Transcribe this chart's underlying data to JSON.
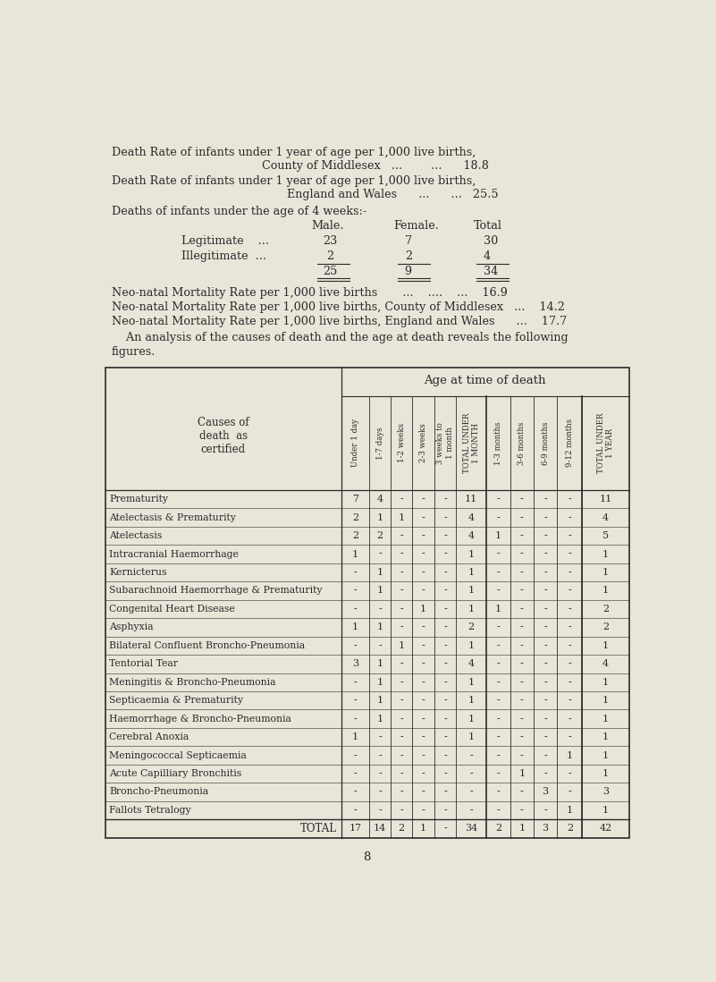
{
  "bg_color": "#e9e5d9",
  "text_color": "#2a2a2a",
  "page_number": "8",
  "table": {
    "causes": [
      "Prematurity",
      "Atelectasis & Prematurity",
      "Atelectasis",
      "Intracranial Haemorrhage",
      "Kernicterus",
      "Subarachnoid Haemorrhage & Prematurity",
      "Congenital Heart Disease",
      "Asphyxia",
      "Bilateral Confluent Broncho-Pneumonia",
      "Tentorial Tear",
      "Meningitis & Broncho-Pneumonia",
      "Septicaemia & Prematurity",
      "Haemorrhage & Broncho-Pneumonia",
      "Cerebral Anoxia",
      "Meningococcal Septicaemia",
      "Acute Capilliary Bronchitis",
      "Broncho-Pneumonia",
      "Fallots Tetralogy",
      "TOTAL"
    ],
    "col_headers": [
      "Under 1 day",
      "1-7 days",
      "1-2 weeks",
      "2-3 weeks",
      "3 weeks to\n1 month",
      "TOTAL UNDER\n1 MONTH",
      "1-3 months",
      "3-6 months",
      "6-9 months",
      "9-12 months",
      "TOTAL UNDER\n1 YEAR"
    ],
    "data": [
      [
        "7",
        "4",
        "-",
        "-",
        "-",
        "11",
        "-",
        "-",
        "-",
        "-",
        "11"
      ],
      [
        "2",
        "1",
        "1",
        "-",
        "-",
        "4",
        "-",
        "-",
        "-",
        "-",
        "4"
      ],
      [
        "2",
        "2",
        "-",
        "-",
        "-",
        "4",
        "1",
        "-",
        "-",
        "-",
        "5"
      ],
      [
        "1",
        "-",
        "-",
        "-",
        "-",
        "1",
        "-",
        "-",
        "-",
        "-",
        "1"
      ],
      [
        "-",
        "1",
        "-",
        "-",
        "-",
        "1",
        "-",
        "-",
        "-",
        "-",
        "1"
      ],
      [
        "-",
        "1",
        "-",
        "-",
        "-",
        "1",
        "-",
        "-",
        "-",
        "-",
        "1"
      ],
      [
        "-",
        "-",
        "-",
        "1",
        "-",
        "1",
        "1",
        "-",
        "-",
        "-",
        "2"
      ],
      [
        "1",
        "1",
        "-",
        "-",
        "-",
        "2",
        "-",
        "-",
        "-",
        "-",
        "2"
      ],
      [
        "-",
        "-",
        "1",
        "-",
        "-",
        "1",
        "-",
        "-",
        "-",
        "-",
        "1"
      ],
      [
        "3",
        "1",
        "-",
        "-",
        "-",
        "4",
        "-",
        "-",
        "-",
        "-",
        "4"
      ],
      [
        "-",
        "1",
        "-",
        "-",
        "-",
        "1",
        "-",
        "-",
        "-",
        "-",
        "1"
      ],
      [
        "-",
        "1",
        "-",
        "-",
        "-",
        "1",
        "-",
        "-",
        "-",
        "-",
        "1"
      ],
      [
        "-",
        "1",
        "-",
        "-",
        "-",
        "1",
        "-",
        "-",
        "-",
        "-",
        "1"
      ],
      [
        "1",
        "-",
        "-",
        "-",
        "-",
        "1",
        "-",
        "-",
        "-",
        "-",
        "1"
      ],
      [
        "-",
        "-",
        "-",
        "-",
        "-",
        "-",
        "-",
        "-",
        "-",
        "1",
        "1"
      ],
      [
        "-",
        "-",
        "-",
        "-",
        "-",
        "-",
        "-",
        "1",
        "-",
        "-",
        "1"
      ],
      [
        "-",
        "-",
        "-",
        "-",
        "-",
        "-",
        "-",
        "-",
        "3",
        "-",
        "3"
      ],
      [
        "-",
        "-",
        "-",
        "-",
        "-",
        "-",
        "-",
        "-",
        "-",
        "1",
        "1"
      ],
      [
        "17",
        "14",
        "2",
        "1",
        "-",
        "34",
        "2",
        "1",
        "3",
        "2",
        "42"
      ]
    ]
  }
}
